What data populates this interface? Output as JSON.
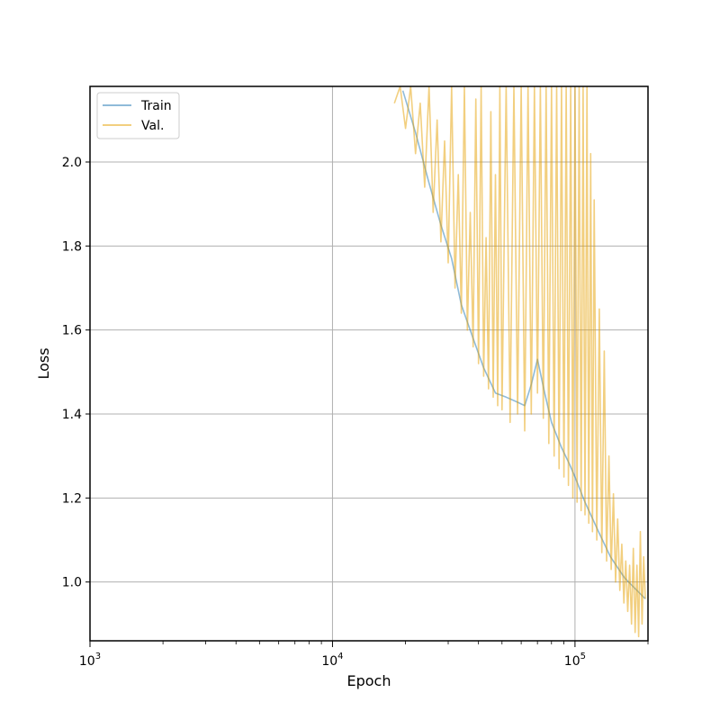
{
  "chart_data": {
    "type": "line",
    "xlabel": "Epoch",
    "ylabel": "Loss",
    "x_scale": "log",
    "xlim": [
      1000,
      200000
    ],
    "ylim": [
      0.86,
      2.18
    ],
    "x_ticks": [
      {
        "value": 1000,
        "base": "10",
        "exp": "3"
      },
      {
        "value": 10000,
        "base": "10",
        "exp": "4"
      },
      {
        "value": 100000,
        "base": "10",
        "exp": "5"
      }
    ],
    "y_ticks": [
      {
        "value": 1.0,
        "label": "1.0"
      },
      {
        "value": 1.2,
        "label": "1.2"
      },
      {
        "value": 1.4,
        "label": "1.4"
      },
      {
        "value": 1.6,
        "label": "1.6"
      },
      {
        "value": 1.8,
        "label": "1.8"
      },
      {
        "value": 2.0,
        "label": "2.0"
      }
    ],
    "grid": true,
    "legend_position": "top-left",
    "series": [
      {
        "name": "Train",
        "color": "#1f77b4",
        "opacity": 0.5,
        "x": [
          19500,
          22000,
          25000,
          28000,
          31000,
          34000,
          38000,
          42000,
          47000,
          52000,
          57000,
          62000,
          66000,
          70000,
          75000,
          80000,
          88000,
          95000,
          100000,
          110000,
          125000,
          140000,
          160000,
          180000,
          195000
        ],
        "y": [
          2.17,
          2.07,
          1.95,
          1.85,
          1.77,
          1.66,
          1.58,
          1.51,
          1.45,
          1.44,
          1.43,
          1.42,
          1.47,
          1.53,
          1.45,
          1.38,
          1.32,
          1.28,
          1.25,
          1.19,
          1.12,
          1.06,
          1.01,
          0.98,
          0.96
        ]
      },
      {
        "name": "Val.",
        "color": "#e69f00",
        "opacity": 0.5,
        "x": [
          18000,
          19000,
          20000,
          21000,
          22000,
          23000,
          24000,
          25000,
          26000,
          27000,
          28000,
          29000,
          30000,
          31000,
          32000,
          33000,
          34000,
          35000,
          36000,
          37000,
          38000,
          39000,
          40000,
          41000,
          42000,
          43000,
          44000,
          45000,
          46000,
          47000,
          48000,
          49000,
          50000,
          52000,
          54000,
          56000,
          58000,
          60000,
          62000,
          64000,
          66000,
          68000,
          70000,
          72000,
          74000,
          76000,
          78000,
          80000,
          82000,
          84000,
          86000,
          88000,
          90000,
          92000,
          94000,
          96000,
          98000,
          100000,
          102000,
          104000,
          106000,
          108000,
          110000,
          112000,
          114000,
          116000,
          118000,
          120000,
          123000,
          126000,
          129000,
          132000,
          135000,
          138000,
          141000,
          144000,
          147000,
          150000,
          153000,
          156000,
          159000,
          162000,
          165000,
          168000,
          171000,
          174000,
          177000,
          180000,
          183000,
          186000,
          189000,
          192000,
          195000
        ],
        "y": [
          2.14,
          2.18,
          2.08,
          2.18,
          2.02,
          2.14,
          1.94,
          2.18,
          1.88,
          2.1,
          1.81,
          2.05,
          1.76,
          2.18,
          1.7,
          1.97,
          1.64,
          2.18,
          1.6,
          1.88,
          1.56,
          2.15,
          1.52,
          2.18,
          1.49,
          1.82,
          1.46,
          2.12,
          1.44,
          1.97,
          1.42,
          2.18,
          1.41,
          2.18,
          1.38,
          2.18,
          1.4,
          2.18,
          1.36,
          2.18,
          1.4,
          2.18,
          1.45,
          2.18,
          1.39,
          2.18,
          1.33,
          2.18,
          1.3,
          2.18,
          1.27,
          2.18,
          1.25,
          2.18,
          1.23,
          2.18,
          1.2,
          2.18,
          1.19,
          2.18,
          1.17,
          2.18,
          1.16,
          2.18,
          1.14,
          2.02,
          1.12,
          1.91,
          1.1,
          1.65,
          1.07,
          1.55,
          1.05,
          1.3,
          1.03,
          1.21,
          1.0,
          1.15,
          0.98,
          1.09,
          0.95,
          1.05,
          0.93,
          1.04,
          0.9,
          1.08,
          0.88,
          1.04,
          0.87,
          1.12,
          0.9,
          1.06,
          0.96
        ]
      }
    ]
  }
}
